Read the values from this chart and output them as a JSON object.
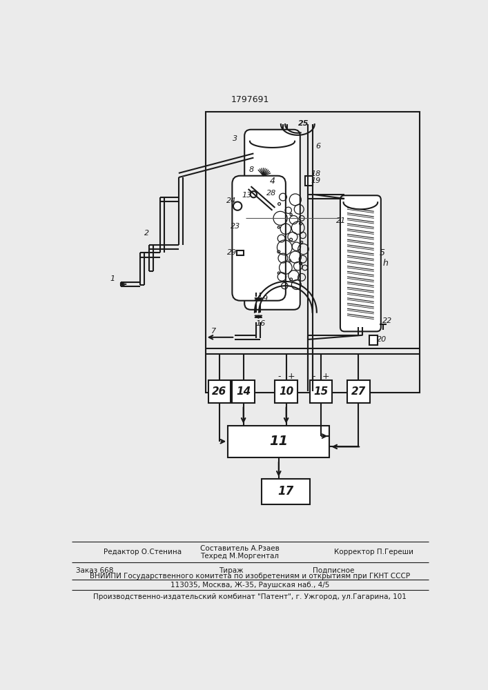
{
  "patent_number": "1797691",
  "bg_color": "#ebebeb",
  "line_color": "#1a1a1a",
  "footer": {
    "editor": "Редактор О.Стенина",
    "composer": "Составитель А.Рзаев",
    "techred": "Техред М.Моргентал",
    "corrector": "Корректор П.Гереши",
    "order": "Заказ 668",
    "tirazh": "Тираж",
    "podpisnoe": "Подписное",
    "vniip1": "ВНИИПИ Государственного комитета по изобретениям и открытиям при ГКНТ СССР",
    "vniip2": "113035, Москва, Ж-35, Раушская наб., 4/5",
    "patent_line": "Производственно-издательский комбинат \"Патент\", г. Ужгород, ул.Гагарина, 101"
  }
}
